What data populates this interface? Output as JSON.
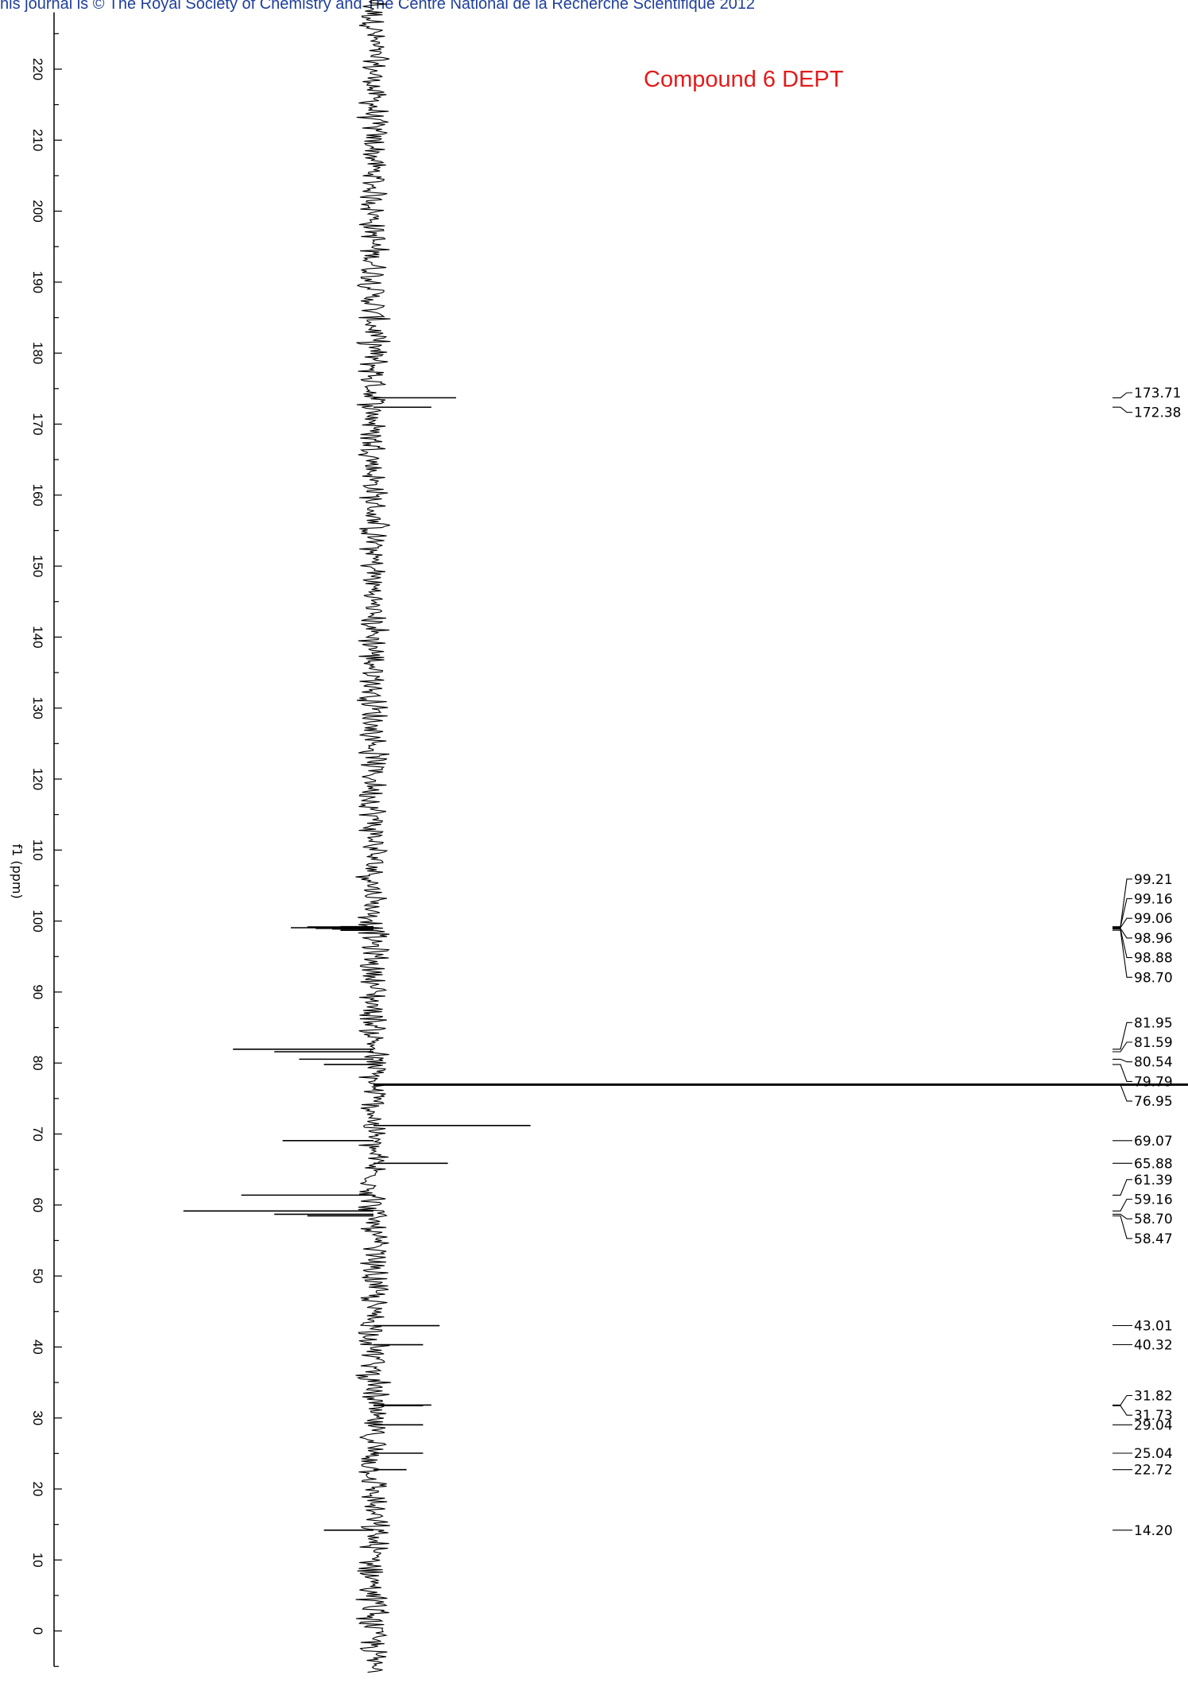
{
  "header": {
    "journal_line": "his journal is © The Royal Society of Chemistry and The Centre National de la Recherche Scientifique 2012"
  },
  "colors": {
    "title": "#e31b1b",
    "header": "#1f3f9a",
    "trace": "#000000"
  },
  "chart_data": {
    "type": "line",
    "title": "Compound 6 DEPT",
    "ylabel": "f1 (ppm)",
    "axis_orientation": "vertical, ppm decreasing downward",
    "axis_range_ppm": [
      -5,
      228
    ],
    "major_ticks": [
      220,
      210,
      200,
      190,
      180,
      170,
      160,
      150,
      140,
      130,
      120,
      110,
      100,
      90,
      80,
      70,
      60,
      50,
      40,
      30,
      20,
      10,
      0
    ],
    "peaks": [
      {
        "ppm": 173.71,
        "intensity": 0.1,
        "direction": "up"
      },
      {
        "ppm": 172.38,
        "intensity": 0.07,
        "direction": "up"
      },
      {
        "ppm": 99.21,
        "intensity": 0.04,
        "direction": "down"
      },
      {
        "ppm": 99.16,
        "intensity": 0.08,
        "direction": "down"
      },
      {
        "ppm": 99.06,
        "intensity": 0.1,
        "direction": "down"
      },
      {
        "ppm": 98.96,
        "intensity": 0.07,
        "direction": "down"
      },
      {
        "ppm": 98.88,
        "intensity": 0.05,
        "direction": "down"
      },
      {
        "ppm": 98.7,
        "intensity": 0.04,
        "direction": "down"
      },
      {
        "ppm": 81.95,
        "intensity": 0.17,
        "direction": "down"
      },
      {
        "ppm": 81.59,
        "intensity": 0.12,
        "direction": "down"
      },
      {
        "ppm": 80.54,
        "intensity": 0.09,
        "direction": "down"
      },
      {
        "ppm": 79.79,
        "intensity": 0.06,
        "direction": "down"
      },
      {
        "ppm": 76.95,
        "intensity": 1.0,
        "direction": "up"
      },
      {
        "ppm": 71.2,
        "intensity": 0.19,
        "direction": "up"
      },
      {
        "ppm": 69.07,
        "intensity": 0.11,
        "direction": "down"
      },
      {
        "ppm": 65.88,
        "intensity": 0.09,
        "direction": "up"
      },
      {
        "ppm": 61.39,
        "intensity": 0.16,
        "direction": "down"
      },
      {
        "ppm": 59.16,
        "intensity": 0.23,
        "direction": "down"
      },
      {
        "ppm": 58.7,
        "intensity": 0.12,
        "direction": "down"
      },
      {
        "ppm": 58.47,
        "intensity": 0.08,
        "direction": "down"
      },
      {
        "ppm": 43.01,
        "intensity": 0.08,
        "direction": "up"
      },
      {
        "ppm": 40.32,
        "intensity": 0.06,
        "direction": "up"
      },
      {
        "ppm": 31.82,
        "intensity": 0.07,
        "direction": "up"
      },
      {
        "ppm": 31.73,
        "intensity": 0.06,
        "direction": "up"
      },
      {
        "ppm": 29.04,
        "intensity": 0.06,
        "direction": "up"
      },
      {
        "ppm": 25.04,
        "intensity": 0.06,
        "direction": "up"
      },
      {
        "ppm": 22.72,
        "intensity": 0.04,
        "direction": "up"
      },
      {
        "ppm": 14.2,
        "intensity": 0.06,
        "direction": "down"
      }
    ],
    "peak_labels": [
      {
        "text": "173.71",
        "ppm": 173.71,
        "group": 0
      },
      {
        "text": "172.38",
        "ppm": 172.38,
        "group": 0
      },
      {
        "text": "99.21",
        "ppm": 99.21,
        "group": 1
      },
      {
        "text": "99.16",
        "ppm": 99.16,
        "group": 1
      },
      {
        "text": "99.06",
        "ppm": 99.06,
        "group": 1
      },
      {
        "text": "98.96",
        "ppm": 98.96,
        "group": 1
      },
      {
        "text": "98.88",
        "ppm": 98.88,
        "group": 1
      },
      {
        "text": "98.70",
        "ppm": 98.7,
        "group": 1
      },
      {
        "text": "81.95",
        "ppm": 81.95,
        "group": 2
      },
      {
        "text": "81.59",
        "ppm": 81.59,
        "group": 2
      },
      {
        "text": "80.54",
        "ppm": 80.54,
        "group": 2
      },
      {
        "text": "79.79",
        "ppm": 79.79,
        "group": 2
      },
      {
        "text": "76.95",
        "ppm": 76.95,
        "group": 2
      },
      {
        "text": "69.07",
        "ppm": 69.07,
        "group": 3
      },
      {
        "text": "65.88",
        "ppm": 65.88,
        "group": 4
      },
      {
        "text": "61.39",
        "ppm": 61.39,
        "group": 5
      },
      {
        "text": "59.16",
        "ppm": 59.16,
        "group": 5
      },
      {
        "text": "58.70",
        "ppm": 58.7,
        "group": 5
      },
      {
        "text": "58.47",
        "ppm": 58.47,
        "group": 5
      },
      {
        "text": "43.01",
        "ppm": 43.01,
        "group": 6
      },
      {
        "text": "40.32",
        "ppm": 40.32,
        "group": 7
      },
      {
        "text": "31.82",
        "ppm": 31.82,
        "group": 8
      },
      {
        "text": "31.73",
        "ppm": 31.73,
        "group": 8
      },
      {
        "text": "29.04",
        "ppm": 29.04,
        "group": 9
      },
      {
        "text": "25.04",
        "ppm": 25.04,
        "group": 10
      },
      {
        "text": "22.72",
        "ppm": 22.72,
        "group": 11
      },
      {
        "text": "14.20",
        "ppm": 14.2,
        "group": 12
      }
    ]
  }
}
